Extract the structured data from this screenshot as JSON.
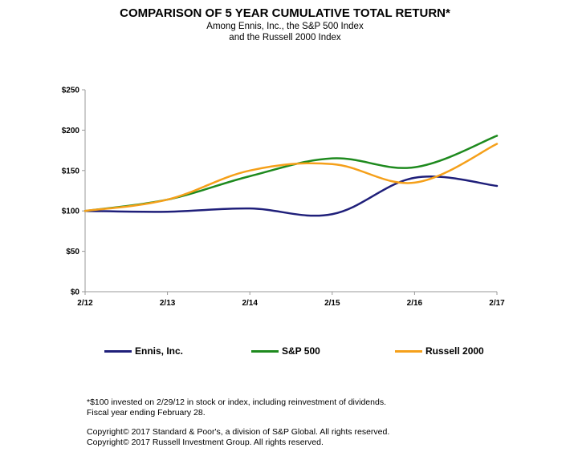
{
  "chart_data": {
    "type": "line",
    "title": "COMPARISON OF 5 YEAR CUMULATIVE TOTAL RETURN*",
    "subtitle_lines": [
      "Among Ennis, Inc., the S&P 500 Index",
      "and the Russell 2000 Index"
    ],
    "categories": [
      "2/12",
      "2/13",
      "2/14",
      "2/15",
      "2/16",
      "2/17"
    ],
    "ylim": [
      0,
      250
    ],
    "yticks": [
      0,
      50,
      100,
      150,
      200,
      250
    ],
    "ytick_labels": [
      "$0",
      "$50",
      "$100",
      "$150",
      "$200",
      "$250"
    ],
    "grid": false,
    "legend_position": "bottom",
    "series": [
      {
        "name": "Ennis, Inc.",
        "color": "#1f1f7a",
        "values": [
          100,
          99,
          103,
          96,
          141,
          131
        ]
      },
      {
        "name": "S&P 500",
        "color": "#1e8a1e",
        "values": [
          100,
          114,
          143,
          165,
          154,
          193
        ]
      },
      {
        "name": "Russell 2000",
        "color": "#f5a01a",
        "values": [
          100,
          114,
          150,
          158,
          135,
          183
        ]
      }
    ]
  },
  "footnotes": [
    "*$100 invested on 2/29/12 in stock or index, including reinvestment of dividends.",
    "Fiscal year ending February 28.",
    "Copyright© 2017 Standard & Poor's, a division of S&P Global. All rights reserved.",
    "Copyright© 2017 Russell Investment Group. All rights reserved."
  ]
}
